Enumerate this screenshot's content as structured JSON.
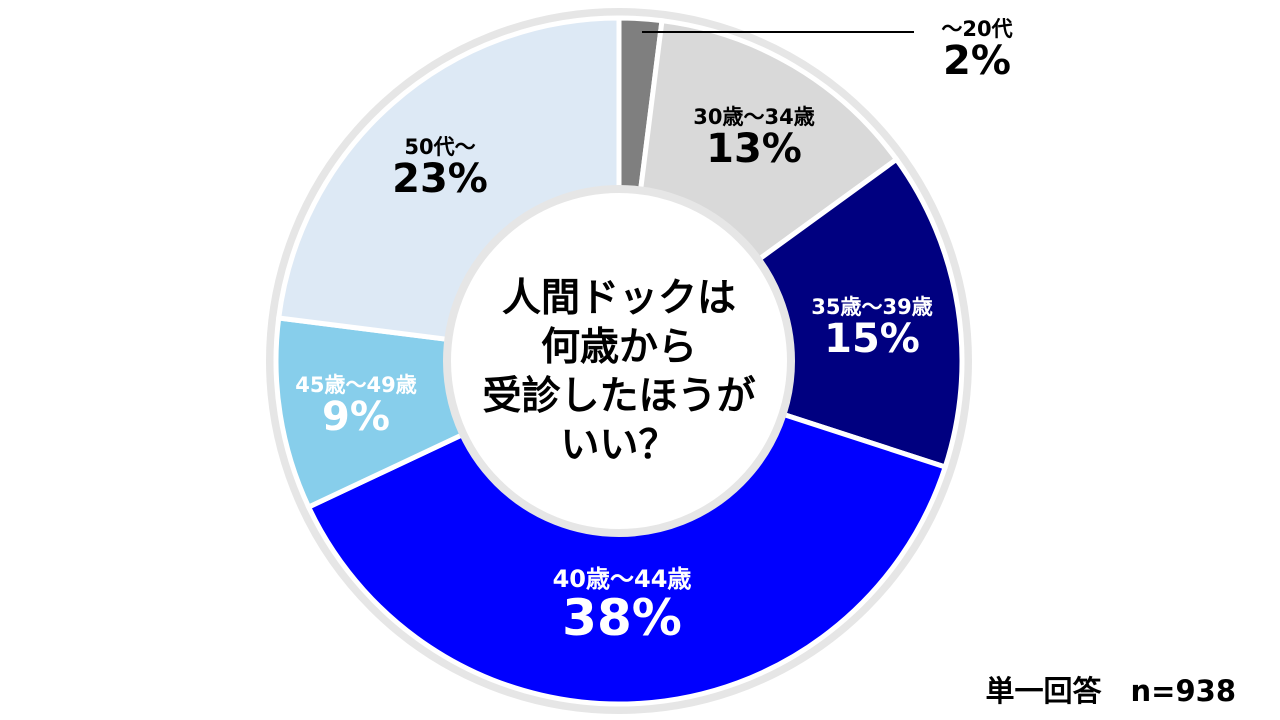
{
  "chart_data": {
    "type": "pie",
    "donut": true,
    "title": "人間ドックは何歳から受診したほうがいい？",
    "title_lines": [
      "人間ドックは",
      "何歳から",
      "受診したほうが",
      "いい？"
    ],
    "categories": [
      "～20代",
      "30歳～34歳",
      "35歳～39歳",
      "40歳～44歳",
      "45歳～49歳",
      "50代～"
    ],
    "values": [
      2,
      13,
      15,
      38,
      9,
      23
    ],
    "unit": "%",
    "colors": [
      "#7f7f7f",
      "#d9d9d9",
      "#000080",
      "#0000ff",
      "#87ceeb",
      "#dde9f5"
    ],
    "label_colors": [
      "#000000",
      "#000000",
      "#ffffff",
      "#ffffff",
      "#ffffff",
      "#000000"
    ],
    "start_angle": "12 o'clock, clockwise",
    "legend": "none (labels on slices)",
    "note": "単一回答　n=938"
  },
  "labels": [
    {
      "cat": "～20代",
      "pct": "2%"
    },
    {
      "cat": "30歳～34歳",
      "pct": "13%"
    },
    {
      "cat": "35歳～39歳",
      "pct": "15%"
    },
    {
      "cat": "40歳～44歳",
      "pct": "38%"
    },
    {
      "cat": "45歳～49歳",
      "pct": "9%"
    },
    {
      "cat": "50代～",
      "pct": "23%"
    }
  ],
  "center": {
    "lines": [
      "人間ドックは",
      "何歳から",
      "受診したほうが",
      "いい？"
    ]
  },
  "footer": {
    "text": "単一回答　n=938"
  }
}
